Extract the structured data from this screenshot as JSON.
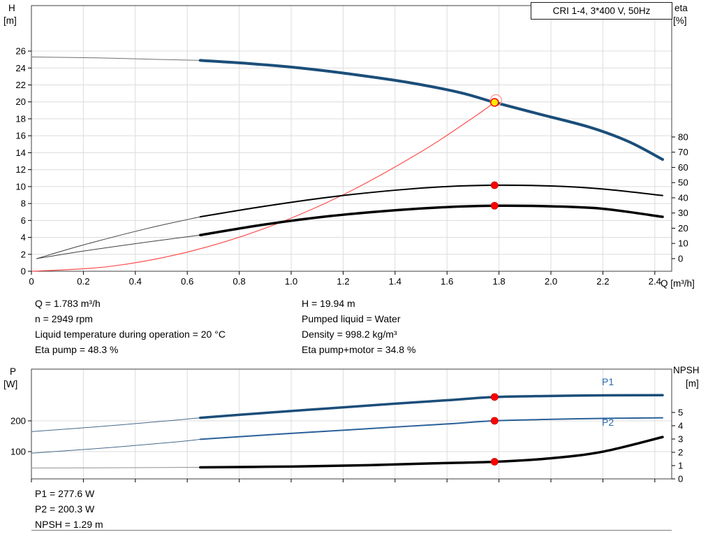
{
  "chart_data": [
    {
      "id": "performance-chart",
      "type": "line",
      "title": "CRI 1-4, 3*400 V, 50Hz",
      "x_axis": {
        "label": "Q [m³/h]",
        "min": 0,
        "max": 2.465,
        "ticks": [
          "0",
          "0.2",
          "0.4",
          "0.6",
          "0.8",
          "1.0",
          "1.2",
          "1.4",
          "1.6",
          "1.8",
          "2.0",
          "2.2",
          "2.4"
        ],
        "show_labels": true
      },
      "y_left": {
        "label": "H",
        "unit": "[m]",
        "min": 0,
        "max": 31.37,
        "ticks": [
          "0",
          "2",
          "4",
          "6",
          "8",
          "10",
          "12",
          "14",
          "16",
          "18",
          "20",
          "22",
          "24",
          "26"
        ]
      },
      "y_right": {
        "label": "eta",
        "unit": "[%]",
        "min": -8.3,
        "max": 166.4,
        "ticks": [
          "0",
          "10",
          "20",
          "30",
          "40",
          "50",
          "60",
          "70",
          "80"
        ]
      },
      "series": [
        {
          "name": "hq-curve-extension",
          "axis": "y_left",
          "color": "#707070",
          "width": 1,
          "points": [
            [
              0,
              25.3
            ],
            [
              0.25,
              25.2
            ],
            [
              0.5,
              25.0
            ],
            [
              0.65,
              24.9
            ]
          ]
        },
        {
          "name": "hq-curve",
          "axis": "y_left",
          "color": "#1b4e79",
          "width": 4,
          "points": [
            [
              0.65,
              24.9
            ],
            [
              0.85,
              24.5
            ],
            [
              1.05,
              23.95
            ],
            [
              1.25,
              23.2
            ],
            [
              1.45,
              22.3
            ],
            [
              1.65,
              21.1
            ],
            [
              1.783,
              19.94
            ],
            [
              1.95,
              18.6
            ],
            [
              2.15,
              17.0
            ],
            [
              2.3,
              15.3
            ],
            [
              2.43,
              13.2
            ]
          ]
        },
        {
          "name": "system-curve",
          "axis": "y_left",
          "color": "#ff4d4d",
          "width": 1.2,
          "points": [
            [
              0,
              0
            ],
            [
              0.3,
              0.56
            ],
            [
              0.6,
              2.26
            ],
            [
              0.9,
              5.08
            ],
            [
              1.2,
              9.03
            ],
            [
              1.5,
              14.11
            ],
            [
              1.7,
              18.13
            ],
            [
              1.783,
              19.94
            ]
          ]
        },
        {
          "name": "eta-pump-curve-extension",
          "axis": "y_right",
          "color": "#404040",
          "width": 1,
          "points": [
            [
              0.02,
              0
            ],
            [
              0.2,
              9
            ],
            [
              0.45,
              20
            ],
            [
              0.65,
              27.5
            ]
          ]
        },
        {
          "name": "eta-pump-curve",
          "axis": "y_right",
          "color": "#000000",
          "width": 2,
          "points": [
            [
              0.65,
              27.5
            ],
            [
              0.9,
              34.5
            ],
            [
              1.15,
              40.5
            ],
            [
              1.4,
              45
            ],
            [
              1.6,
              47.4
            ],
            [
              1.783,
              48.3
            ],
            [
              2.0,
              47.8
            ],
            [
              2.2,
              45.8
            ],
            [
              2.43,
              41.5
            ]
          ]
        },
        {
          "name": "eta-pump-motor-curve-extension",
          "axis": "y_right",
          "color": "#404040",
          "width": 1,
          "points": [
            [
              0.02,
              0
            ],
            [
              0.2,
              5
            ],
            [
              0.45,
              11
            ],
            [
              0.65,
              15.5
            ]
          ]
        },
        {
          "name": "eta-pump-motor-curve",
          "axis": "y_right",
          "color": "#000000",
          "width": 3.5,
          "points": [
            [
              0.65,
              15.5
            ],
            [
              0.9,
              22.5
            ],
            [
              1.15,
              28
            ],
            [
              1.4,
              31.8
            ],
            [
              1.6,
              33.9
            ],
            [
              1.783,
              34.8
            ],
            [
              2.0,
              34.4
            ],
            [
              2.2,
              32.8
            ],
            [
              2.43,
              27.5
            ]
          ]
        }
      ],
      "markers": [
        {
          "name": "duty-point-marker",
          "style": "duty",
          "axis": "y_left",
          "x": 1.783,
          "y": 19.94
        },
        {
          "name": "eta-pump-duty-dot",
          "style": "dot",
          "axis": "y_right",
          "x": 1.783,
          "y": 48.3
        },
        {
          "name": "eta-pump-motor-duty-dot",
          "style": "dot",
          "axis": "y_right",
          "x": 1.783,
          "y": 34.8
        }
      ]
    },
    {
      "id": "power-npsh-chart",
      "type": "line",
      "x_axis": {
        "label": "Q [m³/h]",
        "min": 0,
        "max": 2.465,
        "ticks": [
          "0",
          "0.2",
          "0.4",
          "0.6",
          "0.8",
          "1.0",
          "1.2",
          "1.4",
          "1.6",
          "1.8",
          "2.0",
          "2.2",
          "2.4"
        ],
        "show_labels": false
      },
      "y_left": {
        "label": "P",
        "unit": "[W]",
        "min": 11.4,
        "max": 368.2,
        "ticks": [
          "100",
          "200"
        ]
      },
      "y_right": {
        "label": "NPSH",
        "unit": "[m]",
        "min": 0,
        "max": 8.26,
        "ticks": [
          "0",
          "1",
          "2",
          "3",
          "4",
          "5"
        ]
      },
      "series": [
        {
          "name": "p1-curve-extension",
          "axis": "y_left",
          "color": "#48698a",
          "width": 1,
          "points": [
            [
              0,
              165
            ],
            [
              0.3,
              184
            ],
            [
              0.55,
              202
            ],
            [
              0.65,
              210
            ]
          ]
        },
        {
          "name": "p1-curve",
          "axis": "y_left",
          "color": "#1b4e79",
          "width": 3.5,
          "label": "P1",
          "points": [
            [
              0.65,
              210
            ],
            [
              0.9,
              226
            ],
            [
              1.15,
              241
            ],
            [
              1.4,
              256
            ],
            [
              1.6,
              267
            ],
            [
              1.783,
              277.6
            ],
            [
              2.0,
              281
            ],
            [
              2.2,
              283
            ],
            [
              2.43,
              283.5
            ]
          ]
        },
        {
          "name": "p2-curve-extension",
          "axis": "y_left",
          "color": "#48698a",
          "width": 1,
          "points": [
            [
              0,
              95
            ],
            [
              0.3,
              113
            ],
            [
              0.55,
              131
            ],
            [
              0.65,
              140
            ]
          ]
        },
        {
          "name": "p2-curve",
          "axis": "y_left",
          "color": "#2a6099",
          "width": 2,
          "label": "P2",
          "points": [
            [
              0.65,
              140
            ],
            [
              0.9,
              154
            ],
            [
              1.15,
              167
            ],
            [
              1.4,
              180
            ],
            [
              1.6,
              190
            ],
            [
              1.783,
              200.3
            ],
            [
              2.0,
              205
            ],
            [
              2.2,
              208
            ],
            [
              2.43,
              210
            ]
          ]
        },
        {
          "name": "npsh-curve-extension",
          "axis": "y_right",
          "color": "#909090",
          "width": 1,
          "points": [
            [
              0,
              0.82
            ],
            [
              0.35,
              0.84
            ],
            [
              0.65,
              0.87
            ]
          ]
        },
        {
          "name": "npsh-curve",
          "axis": "y_right",
          "color": "#000000",
          "width": 3.5,
          "points": [
            [
              0.65,
              0.87
            ],
            [
              1.0,
              0.93
            ],
            [
              1.3,
              1.03
            ],
            [
              1.55,
              1.17
            ],
            [
              1.783,
              1.29
            ],
            [
              2.0,
              1.55
            ],
            [
              2.2,
              2.05
            ],
            [
              2.43,
              3.15
            ]
          ]
        }
      ],
      "markers": [
        {
          "name": "p1-duty-dot",
          "style": "dot",
          "axis": "y_left",
          "x": 1.783,
          "y": 277.6
        },
        {
          "name": "p2-duty-dot",
          "style": "dot",
          "axis": "y_left",
          "x": 1.783,
          "y": 200.3
        },
        {
          "name": "npsh-duty-dot",
          "style": "dot",
          "axis": "y_right",
          "x": 1.783,
          "y": 1.29
        }
      ]
    }
  ],
  "details": {
    "left_column": [
      "Q = 1.783 m³/h",
      "n = 2949 rpm",
      "Liquid temperature during operation = 20 °C",
      "Eta pump = 48.3 %"
    ],
    "right_column": [
      "H = 19.94 m",
      "Pumped liquid = Water",
      "Density = 998.2 kg/m³",
      "Eta pump+motor = 34.8 %"
    ],
    "bottom": [
      "P1 = 277.6 W",
      "P2 = 200.3 W",
      "NPSH = 1.29 m"
    ]
  },
  "colors": {
    "curve_blue": "#1b4e79",
    "system_red": "#ff4d4d",
    "dot_red": "#ff0000",
    "duty_yellow": "#ffe800",
    "grid": "#dcdcdc"
  }
}
